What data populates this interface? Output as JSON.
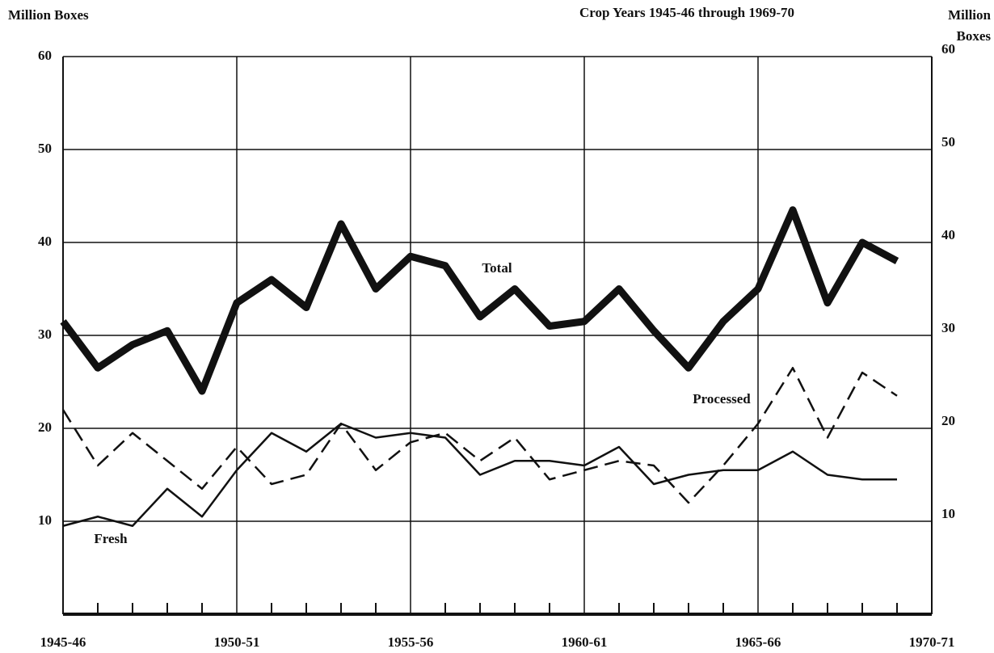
{
  "chart_data": {
    "type": "line",
    "title": "Crop Years 1945-46 through 1969-70",
    "ylabel": "Million Boxes",
    "y2label": "Million Boxes",
    "categories": [
      "1945-46",
      null,
      null,
      null,
      null,
      "1950-51",
      null,
      null,
      null,
      null,
      "1955-56",
      null,
      null,
      null,
      null,
      "1960-61",
      null,
      null,
      null,
      null,
      "1965-66",
      null,
      null,
      null,
      null,
      "1970-71"
    ],
    "series": [
      {
        "name": "Total",
        "color": "#111111",
        "width": 9,
        "dash": false,
        "values": [
          31.5,
          26.5,
          29,
          30.5,
          24,
          33.5,
          36,
          33,
          42,
          35,
          38.5,
          37.5,
          32,
          35,
          31,
          31.5,
          35,
          30.5,
          26.5,
          31.5,
          35,
          43.5,
          33.5,
          40,
          38,
          null
        ]
      },
      {
        "name": "Processed",
        "color": "#111111",
        "width": 2.5,
        "dash": true,
        "values": [
          22,
          16,
          19.5,
          16.5,
          13.5,
          18,
          14,
          15,
          20.5,
          15.5,
          18.5,
          19.5,
          16.5,
          19,
          14.5,
          15.5,
          16.5,
          16,
          12,
          16,
          20.5,
          26.5,
          19,
          26,
          23.5,
          null
        ]
      },
      {
        "name": "Fresh",
        "color": "#111111",
        "width": 2.5,
        "dash": false,
        "values": [
          9.5,
          10.5,
          9.5,
          13.5,
          10.5,
          15.5,
          19.5,
          17.5,
          20.5,
          19,
          19.5,
          19,
          15,
          16.5,
          16.5,
          16,
          18,
          14,
          15,
          15.5,
          15.5,
          17.5,
          15,
          14.5,
          14.5,
          null
        ]
      }
    ],
    "ylim": [
      0,
      60
    ],
    "yticks": [
      10,
      20,
      30,
      40,
      50,
      60
    ],
    "y2lim": [
      0,
      60
    ],
    "y2ticks": [
      10,
      20,
      30,
      40,
      50,
      60
    ],
    "grid": true
  }
}
